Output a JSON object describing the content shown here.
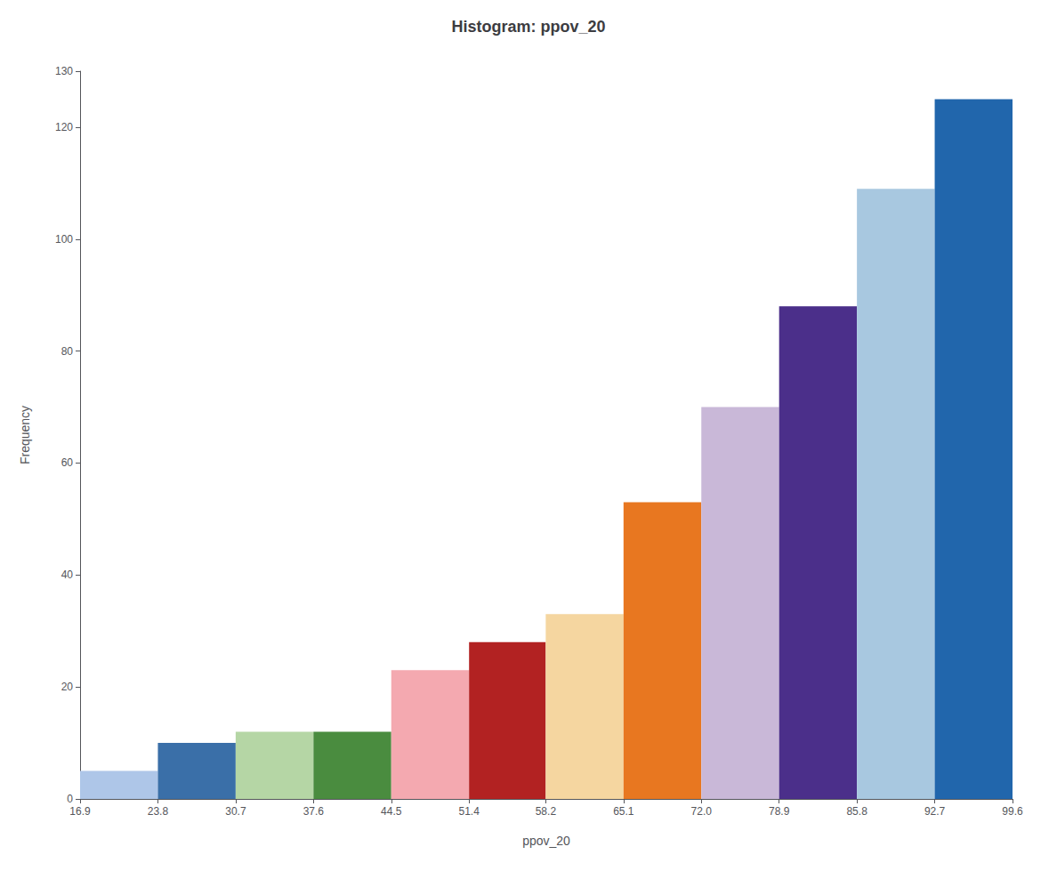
{
  "chart_data": {
    "type": "histogram",
    "title": "Histogram: ppov_20",
    "xlabel": "ppov_20",
    "ylabel": "Frequency",
    "bins": [
      16.9,
      23.8,
      30.7,
      37.6,
      44.5,
      51.4,
      58.2,
      65.1,
      72.0,
      78.9,
      85.8,
      92.7,
      99.6
    ],
    "values": [
      5,
      10,
      12,
      12,
      23,
      28,
      33,
      53,
      70,
      88,
      109,
      125
    ],
    "colors": [
      "#aec6e8",
      "#3a6fa8",
      "#b5d6a5",
      "#4a8c3f",
      "#f4a9b0",
      "#b22222",
      "#f5d6a0",
      "#e87720",
      "#c9b8d8",
      "#4b2f8a",
      "#a8c8e0",
      "#2166ac"
    ],
    "xlim": [
      16.9,
      99.6
    ],
    "xticks": [
      16.9,
      23.8,
      30.7,
      37.6,
      44.5,
      51.4,
      58.2,
      65.1,
      {
        "value": 72.0,
        "label": "72.0"
      },
      78.9,
      85.8,
      92.7,
      99.6
    ],
    "ylim": [
      0,
      130
    ],
    "yticks": [
      0,
      20,
      40,
      60,
      80,
      100,
      120
    ],
    "grid": false
  }
}
